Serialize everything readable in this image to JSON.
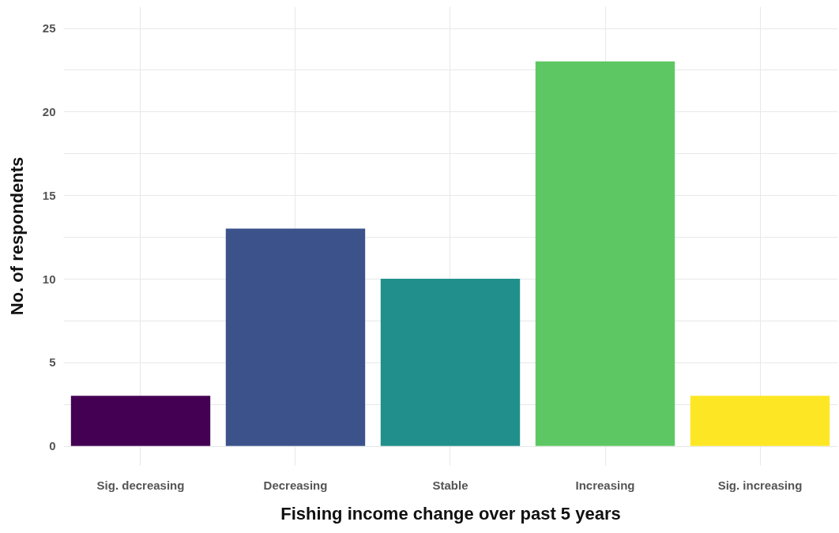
{
  "chart_data": {
    "type": "bar",
    "xlabel": "Fishing income change over past 5 years",
    "ylabel": "No. of respondents",
    "categories": [
      "Sig. decreasing",
      "Decreasing",
      "Stable",
      "Increasing",
      "Sig. increasing"
    ],
    "values": [
      3,
      13,
      10,
      23,
      3
    ],
    "colors": [
      "#440154",
      "#3b528b",
      "#21908c",
      "#5dc863",
      "#fde725"
    ],
    "ylim": [
      -1.15,
      26.3
    ],
    "yticks": [
      0,
      {
        "value": 2.5,
        "label": null
      },
      5,
      {
        "value": 7.5,
        "label": null
      },
      10,
      {
        "value": 12.5,
        "label": null
      },
      15,
      {
        "value": 17.5,
        "label": null
      },
      20,
      {
        "value": 22.5,
        "label": null
      },
      25
    ],
    "grid": true,
    "legend": false
  }
}
